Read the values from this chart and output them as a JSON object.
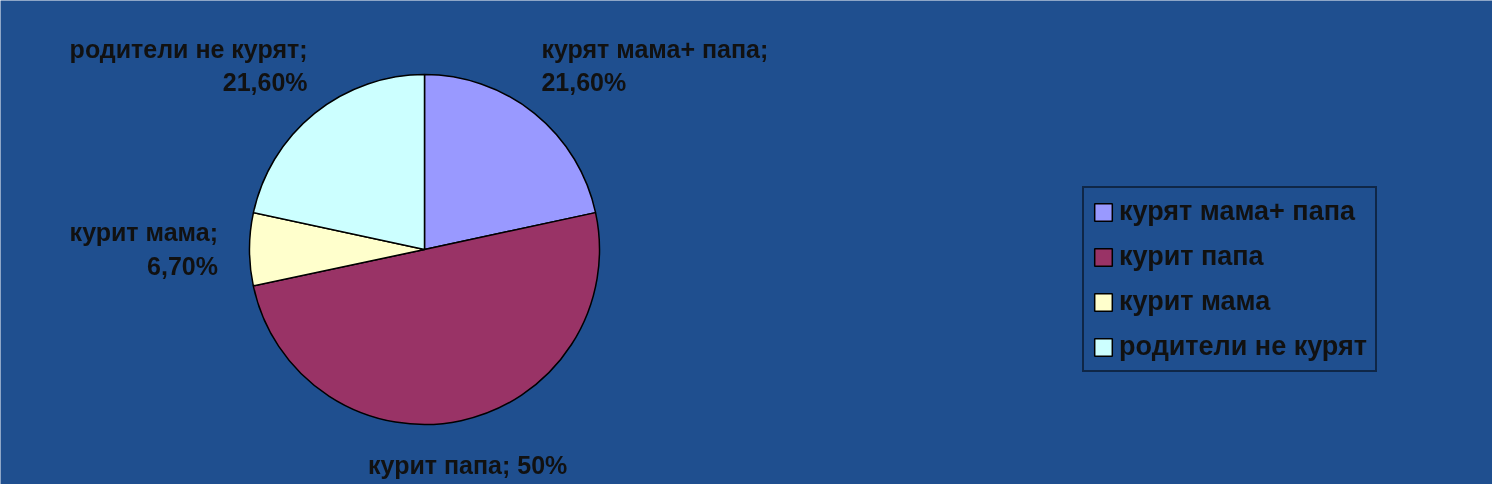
{
  "chart_data": {
    "type": "pie",
    "categories": [
      "курят мама+ папа",
      "курит папа",
      "курит мама",
      "родители не курят"
    ],
    "values": [
      21.6,
      50,
      6.7,
      21.6
    ],
    "value_labels": [
      "курят мама+ папа; 21,60%",
      "курит папа; 50%",
      "курит мама; 6,70%",
      "родители не курят; 21,60%"
    ],
    "colors": [
      "#9999ff",
      "#993366",
      "#ffffcc",
      "#ccffff"
    ],
    "legend": "right"
  }
}
